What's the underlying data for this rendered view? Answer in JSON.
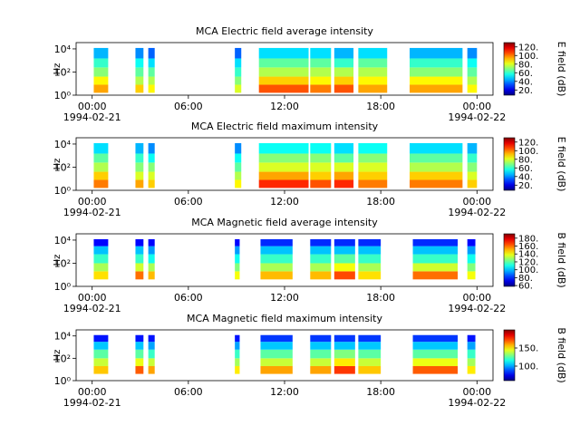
{
  "chart_data": [
    {
      "type": "spectrogram",
      "title": "MCA  Electric field average intensity",
      "ylabel": "Hz",
      "clabel": "E field (dB)",
      "xlim": [
        -1,
        25
      ],
      "xticks": [
        {
          "value": 0,
          "label": "00:00\n1994-02-21"
        },
        {
          "value": 6,
          "label": "06:00"
        },
        {
          "value": 12,
          "label": "12:00"
        },
        {
          "value": 18,
          "label": "18:00"
        },
        {
          "value": 24,
          "label": "00:00\n1994-02-22"
        }
      ],
      "ylim": [
        1,
        35000
      ],
      "log_y": true,
      "yticks": [
        {
          "value": 1,
          "label": "10⁰"
        },
        {
          "value": 100,
          "label": "10²"
        },
        {
          "value": 10000,
          "label": "10⁴"
        }
      ],
      "colormap": "jet",
      "clim": [
        8,
        130
      ],
      "cticks": [
        {
          "value": 20,
          "label": "20."
        },
        {
          "value": 40,
          "label": "40."
        },
        {
          "value": 60,
          "label": "60."
        },
        {
          "value": 80,
          "label": "80."
        },
        {
          "value": 100,
          "label": "100."
        },
        {
          "value": 120,
          "label": "120."
        }
      ],
      "freq_edges": [
        1.6,
        8,
        40,
        250,
        1500,
        12000
      ],
      "segments": [
        {
          "start": 0.1,
          "end": 1.0,
          "values": [
            95,
            85,
            70,
            60,
            45
          ]
        },
        {
          "start": 2.7,
          "end": 3.2,
          "values": [
            90,
            75,
            65,
            55,
            40
          ]
        },
        {
          "start": 3.5,
          "end": 3.9,
          "values": [
            85,
            75,
            65,
            50,
            35
          ]
        },
        {
          "start": 8.9,
          "end": 9.3,
          "values": [
            80,
            70,
            60,
            50,
            35
          ]
        },
        {
          "start": 10.4,
          "end": 13.5,
          "values": [
            105,
            90,
            75,
            65,
            50
          ]
        },
        {
          "start": 13.6,
          "end": 14.9,
          "values": [
            100,
            85,
            75,
            65,
            50
          ]
        },
        {
          "start": 15.1,
          "end": 16.3,
          "values": [
            105,
            90,
            75,
            60,
            45
          ]
        },
        {
          "start": 16.6,
          "end": 18.4,
          "values": [
            95,
            85,
            75,
            65,
            50
          ]
        },
        {
          "start": 19.8,
          "end": 23.1,
          "values": [
            95,
            85,
            70,
            60,
            45
          ]
        },
        {
          "start": 23.4,
          "end": 24.0,
          "values": [
            85,
            75,
            65,
            55,
            40
          ]
        }
      ]
    },
    {
      "type": "spectrogram",
      "title": "MCA  Electric field maximum intensity",
      "ylabel": "Hz",
      "clabel": "E field (dB)",
      "xlim": [
        -1,
        25
      ],
      "xticks": [
        {
          "value": 0,
          "label": "00:00\n1994-02-21"
        },
        {
          "value": 6,
          "label": "06:00"
        },
        {
          "value": 12,
          "label": "12:00"
        },
        {
          "value": 18,
          "label": "18:00"
        },
        {
          "value": 24,
          "label": "00:00\n1994-02-22"
        }
      ],
      "ylim": [
        1,
        35000
      ],
      "log_y": true,
      "yticks": [
        {
          "value": 1,
          "label": "10⁰"
        },
        {
          "value": 100,
          "label": "10²"
        },
        {
          "value": 10000,
          "label": "10⁴"
        }
      ],
      "colormap": "jet",
      "clim": [
        8,
        130
      ],
      "cticks": [
        {
          "value": 20,
          "label": "20."
        },
        {
          "value": 40,
          "label": "40."
        },
        {
          "value": 60,
          "label": "60."
        },
        {
          "value": 80,
          "label": "80."
        },
        {
          "value": 100,
          "label": "100."
        },
        {
          "value": 120,
          "label": "120."
        }
      ],
      "freq_edges": [
        1.6,
        8,
        40,
        250,
        1500,
        12000
      ],
      "segments": [
        {
          "start": 0.1,
          "end": 1.0,
          "values": [
            100,
            90,
            75,
            65,
            50
          ]
        },
        {
          "start": 2.7,
          "end": 3.2,
          "values": [
            95,
            80,
            70,
            60,
            45
          ]
        },
        {
          "start": 3.5,
          "end": 3.9,
          "values": [
            90,
            80,
            70,
            55,
            40
          ]
        },
        {
          "start": 8.9,
          "end": 9.3,
          "values": [
            85,
            75,
            65,
            55,
            40
          ]
        },
        {
          "start": 10.4,
          "end": 13.5,
          "values": [
            110,
            95,
            80,
            70,
            55
          ]
        },
        {
          "start": 13.6,
          "end": 14.9,
          "values": [
            105,
            90,
            80,
            70,
            55
          ]
        },
        {
          "start": 15.1,
          "end": 16.3,
          "values": [
            110,
            95,
            80,
            65,
            50
          ]
        },
        {
          "start": 16.6,
          "end": 18.4,
          "values": [
            100,
            90,
            80,
            70,
            55
          ]
        },
        {
          "start": 19.8,
          "end": 23.1,
          "values": [
            100,
            90,
            75,
            65,
            50
          ]
        },
        {
          "start": 23.4,
          "end": 24.0,
          "values": [
            90,
            80,
            70,
            60,
            45
          ]
        }
      ]
    },
    {
      "type": "spectrogram",
      "title": "MCA  Magnetic field average intensity",
      "ylabel": "Hz",
      "clabel": "B field (dB)",
      "xlim": [
        -1,
        25
      ],
      "xticks": [
        {
          "value": 0,
          "label": "00:00\n1994-02-21"
        },
        {
          "value": 6,
          "label": "06:00"
        },
        {
          "value": 12,
          "label": "12:00"
        },
        {
          "value": 18,
          "label": "18:00"
        },
        {
          "value": 24,
          "label": "00:00\n1994-02-22"
        }
      ],
      "ylim": [
        1,
        35000
      ],
      "log_y": true,
      "yticks": [
        {
          "value": 1,
          "label": "10⁰"
        },
        {
          "value": 100,
          "label": "10²"
        },
        {
          "value": 10000,
          "label": "10⁴"
        }
      ],
      "colormap": "jet",
      "clim": [
        58,
        191
      ],
      "cticks": [
        {
          "value": 60,
          "label": "60."
        },
        {
          "value": 80,
          "label": "80."
        },
        {
          "value": 100,
          "label": "100."
        },
        {
          "value": 120,
          "label": "120."
        },
        {
          "value": 140,
          "label": "140."
        },
        {
          "value": 160,
          "label": "160."
        },
        {
          "value": 180,
          "label": "180."
        }
      ],
      "freq_edges": [
        4,
        20,
        100,
        600,
        3000,
        12000
      ],
      "segments": [
        {
          "start": 0.1,
          "end": 1.0,
          "values": [
            145,
            130,
            115,
            100,
            75
          ]
        },
        {
          "start": 2.7,
          "end": 3.2,
          "values": [
            160,
            135,
            115,
            100,
            75
          ]
        },
        {
          "start": 3.5,
          "end": 3.9,
          "values": [
            150,
            130,
            110,
            95,
            75
          ]
        },
        {
          "start": 8.9,
          "end": 9.2,
          "values": [
            140,
            125,
            110,
            95,
            75
          ]
        },
        {
          "start": 10.5,
          "end": 12.5,
          "values": [
            150,
            130,
            115,
            100,
            80
          ]
        },
        {
          "start": 13.6,
          "end": 14.9,
          "values": [
            150,
            130,
            115,
            100,
            80
          ]
        },
        {
          "start": 15.1,
          "end": 16.4,
          "values": [
            165,
            140,
            120,
            100,
            80
          ]
        },
        {
          "start": 16.6,
          "end": 18.0,
          "values": [
            145,
            130,
            115,
            100,
            80
          ]
        },
        {
          "start": 20.0,
          "end": 22.8,
          "values": [
            160,
            135,
            115,
            100,
            80
          ]
        },
        {
          "start": 23.4,
          "end": 23.9,
          "values": [
            140,
            125,
            110,
            95,
            75
          ]
        }
      ]
    },
    {
      "type": "spectrogram",
      "title": "MCA  Magnetic field maximum intensity",
      "ylabel": "Hz",
      "clabel": "B field (dB)",
      "xlim": [
        -1,
        25
      ],
      "xticks": [
        {
          "value": 0,
          "label": "00:00\n1994-02-21"
        },
        {
          "value": 6,
          "label": "06:00"
        },
        {
          "value": 12,
          "label": "12:00"
        },
        {
          "value": 18,
          "label": "18:00"
        },
        {
          "value": 24,
          "label": "00:00\n1994-02-22"
        }
      ],
      "ylim": [
        1,
        35000
      ],
      "log_y": true,
      "yticks": [
        {
          "value": 1,
          "label": "10⁰"
        },
        {
          "value": 100,
          "label": "10²"
        },
        {
          "value": 10000,
          "label": "10⁴"
        }
      ],
      "colormap": "jet",
      "clim": [
        60,
        200
      ],
      "cticks": [
        {
          "value": 100,
          "label": "100."
        },
        {
          "value": 150,
          "label": "150."
        }
      ],
      "freq_edges": [
        4,
        20,
        100,
        600,
        3000,
        12000
      ],
      "segments": [
        {
          "start": 0.1,
          "end": 1.0,
          "values": [
            155,
            140,
            125,
            105,
            80
          ]
        },
        {
          "start": 2.7,
          "end": 3.2,
          "values": [
            170,
            145,
            125,
            105,
            80
          ]
        },
        {
          "start": 3.5,
          "end": 3.9,
          "values": [
            160,
            140,
            120,
            100,
            80
          ]
        },
        {
          "start": 8.9,
          "end": 9.2,
          "values": [
            150,
            135,
            120,
            100,
            80
          ]
        },
        {
          "start": 10.5,
          "end": 12.5,
          "values": [
            160,
            140,
            125,
            105,
            85
          ]
        },
        {
          "start": 13.6,
          "end": 14.9,
          "values": [
            160,
            140,
            125,
            105,
            85
          ]
        },
        {
          "start": 15.1,
          "end": 16.4,
          "values": [
            175,
            150,
            130,
            105,
            85
          ]
        },
        {
          "start": 16.6,
          "end": 18.0,
          "values": [
            155,
            140,
            125,
            105,
            85
          ]
        },
        {
          "start": 20.0,
          "end": 22.8,
          "values": [
            170,
            145,
            125,
            105,
            85
          ]
        },
        {
          "start": 23.4,
          "end": 23.9,
          "values": [
            150,
            135,
            120,
            100,
            80
          ]
        }
      ]
    }
  ]
}
